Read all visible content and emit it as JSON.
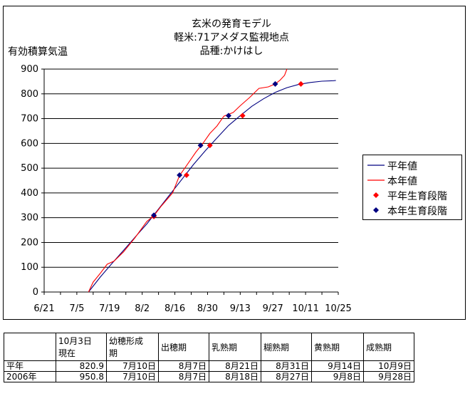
{
  "chart_data": {
    "type": "line",
    "title_lines": [
      "玄米の発育モデル",
      "軽米:71アメダス監視地点",
      "品種:かけはし"
    ],
    "ylabel": "有効積算気温",
    "ylim": [
      0,
      900
    ],
    "yticks": [
      "0",
      "100",
      "200",
      "300",
      "400",
      "500",
      "600",
      "700",
      "800",
      "900"
    ],
    "xticks": [
      "6/21",
      "7/5",
      "7/19",
      "8/2",
      "8/16",
      "8/30",
      "9/13",
      "9/27",
      "10/11",
      "10/25"
    ],
    "xlim_days_from_6_21": [
      0,
      126
    ],
    "grid": "horizontal",
    "legend_position": "right",
    "series": [
      {
        "name": "平年値",
        "kind": "line",
        "color": "#000080",
        "points": [
          [
            "7/10",
            0
          ],
          [
            "7/15",
            60
          ],
          [
            "7/20",
            115
          ],
          [
            "7/25",
            168
          ],
          [
            "7/30",
            222
          ],
          [
            "8/4",
            275
          ],
          [
            "8/9",
            335
          ],
          [
            "8/14",
            395
          ],
          [
            "8/19",
            455
          ],
          [
            "8/24",
            515
          ],
          [
            "8/29",
            570
          ],
          [
            "9/3",
            622
          ],
          [
            "9/8",
            672
          ],
          [
            "9/13",
            712
          ],
          [
            "9/18",
            750
          ],
          [
            "9/23",
            780
          ],
          [
            "9/28",
            806
          ],
          [
            "10/3",
            825
          ],
          [
            "10/8",
            838
          ],
          [
            "10/13",
            846
          ],
          [
            "10/18",
            851
          ],
          [
            "10/23",
            853
          ],
          [
            "10/24",
            854
          ]
        ]
      },
      {
        "name": "本年値",
        "kind": "line",
        "color": "#ff0000",
        "points": [
          [
            "7/10",
            0
          ],
          [
            "7/12",
            40
          ],
          [
            "7/15",
            75
          ],
          [
            "7/18",
            112
          ],
          [
            "7/21",
            125
          ],
          [
            "7/25",
            162
          ],
          [
            "7/30",
            220
          ],
          [
            "8/4",
            285
          ],
          [
            "8/7",
            308
          ],
          [
            "8/10",
            345
          ],
          [
            "8/15",
            400
          ],
          [
            "8/18",
            470
          ],
          [
            "8/21",
            510
          ],
          [
            "8/25",
            565
          ],
          [
            "8/28",
            600
          ],
          [
            "8/31",
            640
          ],
          [
            "9/3",
            670
          ],
          [
            "9/6",
            710
          ],
          [
            "9/10",
            725
          ],
          [
            "9/13",
            752
          ],
          [
            "9/17",
            785
          ],
          [
            "9/21",
            822
          ],
          [
            "9/25",
            828
          ],
          [
            "9/28",
            840
          ],
          [
            "9/30",
            855
          ],
          [
            "10/2",
            875
          ],
          [
            "10/3",
            900
          ]
        ]
      },
      {
        "name": "平年生育段階",
        "kind": "marker",
        "color": "#ff0000",
        "points": [
          [
            "8/7",
            305
          ],
          [
            "8/21",
            472
          ],
          [
            "8/31",
            592
          ],
          [
            "9/14",
            712
          ],
          [
            "10/9",
            840
          ]
        ]
      },
      {
        "name": "本年生育段階",
        "kind": "marker",
        "color": "#000080",
        "points": [
          [
            "8/7",
            310
          ],
          [
            "8/18",
            472
          ],
          [
            "8/27",
            592
          ],
          [
            "9/8",
            712
          ],
          [
            "9/28",
            840
          ]
        ]
      }
    ]
  },
  "table": {
    "header": [
      "",
      "10月3日\n現在",
      "幼穂形成\n期",
      "出穂期",
      "乳熟期",
      "糊熟期",
      "黄熟期",
      "成熟期"
    ],
    "rows": [
      [
        "平年",
        "820.9",
        "7月10日",
        "8月7日",
        "8月21日",
        "8月31日",
        "9月14日",
        "10月9日"
      ],
      [
        "2006年",
        "950.8",
        "7月10日",
        "8月7日",
        "8月18日",
        "8月27日",
        "9月8日",
        "9月28日"
      ]
    ]
  }
}
